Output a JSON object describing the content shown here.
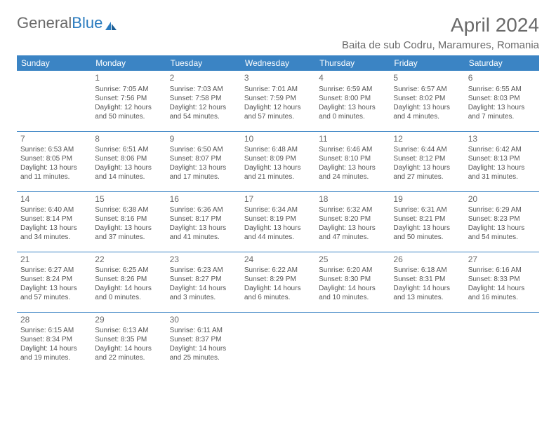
{
  "logo": {
    "part1": "General",
    "part2": "Blue"
  },
  "title": "April 2024",
  "location": "Baita de sub Codru, Maramures, Romania",
  "colors": {
    "header_bg": "#3b84c4",
    "header_text": "#ffffff",
    "text_muted": "#6a6a6a",
    "body_text": "#555555",
    "rule": "#3b84c4",
    "logo_blue": "#2a7bbf"
  },
  "weekdays": [
    "Sunday",
    "Monday",
    "Tuesday",
    "Wednesday",
    "Thursday",
    "Friday",
    "Saturday"
  ],
  "weeks": [
    [
      null,
      {
        "day": "1",
        "sunrise": "Sunrise: 7:05 AM",
        "sunset": "Sunset: 7:56 PM",
        "daylight": "Daylight: 12 hours and 50 minutes."
      },
      {
        "day": "2",
        "sunrise": "Sunrise: 7:03 AM",
        "sunset": "Sunset: 7:58 PM",
        "daylight": "Daylight: 12 hours and 54 minutes."
      },
      {
        "day": "3",
        "sunrise": "Sunrise: 7:01 AM",
        "sunset": "Sunset: 7:59 PM",
        "daylight": "Daylight: 12 hours and 57 minutes."
      },
      {
        "day": "4",
        "sunrise": "Sunrise: 6:59 AM",
        "sunset": "Sunset: 8:00 PM",
        "daylight": "Daylight: 13 hours and 0 minutes."
      },
      {
        "day": "5",
        "sunrise": "Sunrise: 6:57 AM",
        "sunset": "Sunset: 8:02 PM",
        "daylight": "Daylight: 13 hours and 4 minutes."
      },
      {
        "day": "6",
        "sunrise": "Sunrise: 6:55 AM",
        "sunset": "Sunset: 8:03 PM",
        "daylight": "Daylight: 13 hours and 7 minutes."
      }
    ],
    [
      {
        "day": "7",
        "sunrise": "Sunrise: 6:53 AM",
        "sunset": "Sunset: 8:05 PM",
        "daylight": "Daylight: 13 hours and 11 minutes."
      },
      {
        "day": "8",
        "sunrise": "Sunrise: 6:51 AM",
        "sunset": "Sunset: 8:06 PM",
        "daylight": "Daylight: 13 hours and 14 minutes."
      },
      {
        "day": "9",
        "sunrise": "Sunrise: 6:50 AM",
        "sunset": "Sunset: 8:07 PM",
        "daylight": "Daylight: 13 hours and 17 minutes."
      },
      {
        "day": "10",
        "sunrise": "Sunrise: 6:48 AM",
        "sunset": "Sunset: 8:09 PM",
        "daylight": "Daylight: 13 hours and 21 minutes."
      },
      {
        "day": "11",
        "sunrise": "Sunrise: 6:46 AM",
        "sunset": "Sunset: 8:10 PM",
        "daylight": "Daylight: 13 hours and 24 minutes."
      },
      {
        "day": "12",
        "sunrise": "Sunrise: 6:44 AM",
        "sunset": "Sunset: 8:12 PM",
        "daylight": "Daylight: 13 hours and 27 minutes."
      },
      {
        "day": "13",
        "sunrise": "Sunrise: 6:42 AM",
        "sunset": "Sunset: 8:13 PM",
        "daylight": "Daylight: 13 hours and 31 minutes."
      }
    ],
    [
      {
        "day": "14",
        "sunrise": "Sunrise: 6:40 AM",
        "sunset": "Sunset: 8:14 PM",
        "daylight": "Daylight: 13 hours and 34 minutes."
      },
      {
        "day": "15",
        "sunrise": "Sunrise: 6:38 AM",
        "sunset": "Sunset: 8:16 PM",
        "daylight": "Daylight: 13 hours and 37 minutes."
      },
      {
        "day": "16",
        "sunrise": "Sunrise: 6:36 AM",
        "sunset": "Sunset: 8:17 PM",
        "daylight": "Daylight: 13 hours and 41 minutes."
      },
      {
        "day": "17",
        "sunrise": "Sunrise: 6:34 AM",
        "sunset": "Sunset: 8:19 PM",
        "daylight": "Daylight: 13 hours and 44 minutes."
      },
      {
        "day": "18",
        "sunrise": "Sunrise: 6:32 AM",
        "sunset": "Sunset: 8:20 PM",
        "daylight": "Daylight: 13 hours and 47 minutes."
      },
      {
        "day": "19",
        "sunrise": "Sunrise: 6:31 AM",
        "sunset": "Sunset: 8:21 PM",
        "daylight": "Daylight: 13 hours and 50 minutes."
      },
      {
        "day": "20",
        "sunrise": "Sunrise: 6:29 AM",
        "sunset": "Sunset: 8:23 PM",
        "daylight": "Daylight: 13 hours and 54 minutes."
      }
    ],
    [
      {
        "day": "21",
        "sunrise": "Sunrise: 6:27 AM",
        "sunset": "Sunset: 8:24 PM",
        "daylight": "Daylight: 13 hours and 57 minutes."
      },
      {
        "day": "22",
        "sunrise": "Sunrise: 6:25 AM",
        "sunset": "Sunset: 8:26 PM",
        "daylight": "Daylight: 14 hours and 0 minutes."
      },
      {
        "day": "23",
        "sunrise": "Sunrise: 6:23 AM",
        "sunset": "Sunset: 8:27 PM",
        "daylight": "Daylight: 14 hours and 3 minutes."
      },
      {
        "day": "24",
        "sunrise": "Sunrise: 6:22 AM",
        "sunset": "Sunset: 8:29 PM",
        "daylight": "Daylight: 14 hours and 6 minutes."
      },
      {
        "day": "25",
        "sunrise": "Sunrise: 6:20 AM",
        "sunset": "Sunset: 8:30 PM",
        "daylight": "Daylight: 14 hours and 10 minutes."
      },
      {
        "day": "26",
        "sunrise": "Sunrise: 6:18 AM",
        "sunset": "Sunset: 8:31 PM",
        "daylight": "Daylight: 14 hours and 13 minutes."
      },
      {
        "day": "27",
        "sunrise": "Sunrise: 6:16 AM",
        "sunset": "Sunset: 8:33 PM",
        "daylight": "Daylight: 14 hours and 16 minutes."
      }
    ],
    [
      {
        "day": "28",
        "sunrise": "Sunrise: 6:15 AM",
        "sunset": "Sunset: 8:34 PM",
        "daylight": "Daylight: 14 hours and 19 minutes."
      },
      {
        "day": "29",
        "sunrise": "Sunrise: 6:13 AM",
        "sunset": "Sunset: 8:35 PM",
        "daylight": "Daylight: 14 hours and 22 minutes."
      },
      {
        "day": "30",
        "sunrise": "Sunrise: 6:11 AM",
        "sunset": "Sunset: 8:37 PM",
        "daylight": "Daylight: 14 hours and 25 minutes."
      },
      null,
      null,
      null,
      null
    ]
  ]
}
